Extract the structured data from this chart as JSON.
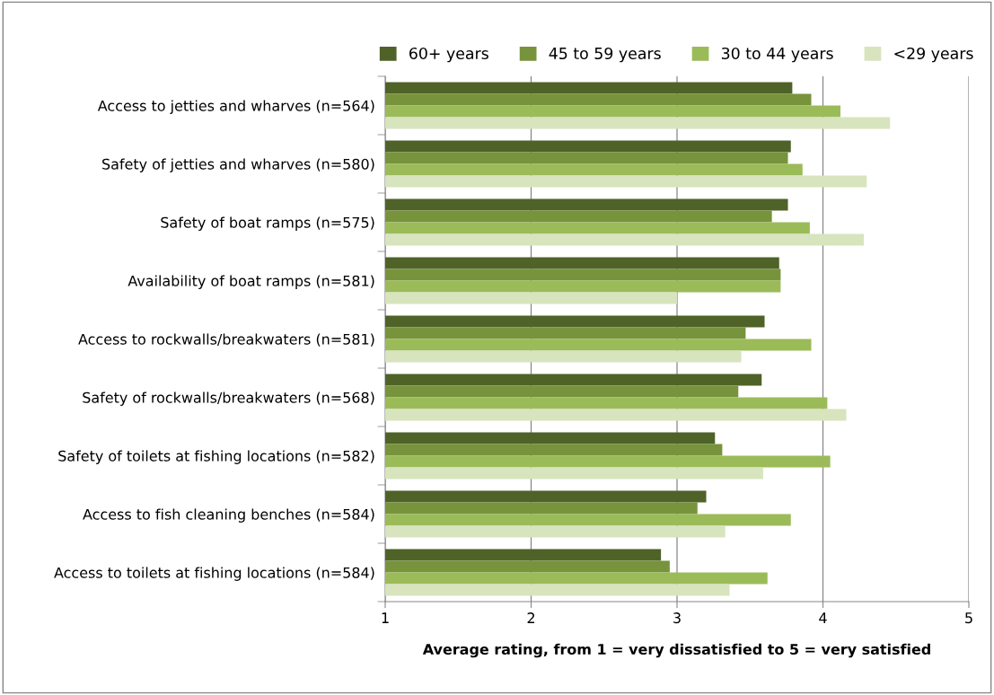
{
  "chart_data": {
    "type": "bar",
    "orientation": "horizontal",
    "xlabel": "Average rating, from 1 = very dissatisfied to 5 = very satisfied",
    "categories": [
      "Access to jetties and wharves (n=564)",
      "Safety of jetties and wharves (n=580)",
      "Safety of boat ramps (n=575)",
      "Availability of boat ramps (n=581)",
      "Access to rockwalls/breakwaters (n=581)",
      "Safety of rockwalls/breakwaters (n=568)",
      "Safety of toilets at fishing locations (n=582)",
      "Access to fish cleaning benches (n=584)",
      "Access to toilets at fishing locations (n=584)"
    ],
    "series": [
      {
        "name": "60+ years",
        "color": "#4f6228",
        "values": [
          3.79,
          3.78,
          3.76,
          3.7,
          3.6,
          3.58,
          3.26,
          3.2,
          2.89
        ]
      },
      {
        "name": "45 to 59 years",
        "color": "#77933c",
        "values": [
          3.92,
          3.76,
          3.65,
          3.71,
          3.47,
          3.42,
          3.31,
          3.14,
          2.95
        ]
      },
      {
        "name": "30 to 44 years",
        "color": "#9bbb59",
        "values": [
          4.12,
          3.86,
          3.91,
          3.71,
          3.92,
          4.03,
          4.05,
          3.78,
          3.62
        ]
      },
      {
        "name": "<29 years",
        "color": "#d7e4bd",
        "values": [
          4.46,
          4.3,
          4.28,
          3.0,
          3.44,
          4.16,
          3.59,
          3.33,
          3.36
        ]
      }
    ],
    "xlim": [
      1,
      5
    ],
    "xticks": [
      1,
      2,
      3,
      4,
      5
    ],
    "grid": "x",
    "legend": "top"
  }
}
